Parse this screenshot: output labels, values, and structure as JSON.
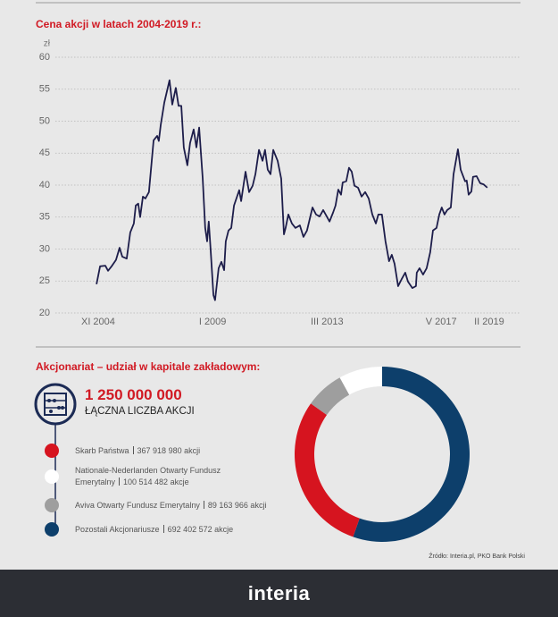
{
  "chart_data": [
    {
      "type": "line",
      "title": "Cena akcji w latach 2004-2019 r.:",
      "ylabel": "zł",
      "x": [
        2004.77,
        2004.9,
        2005.09,
        2005.19,
        2005.32,
        2005.48,
        2005.61,
        2005.71,
        2005.87,
        2006.0,
        2006.13,
        2006.2,
        2006.29,
        2006.36,
        2006.46,
        2006.55,
        2006.68,
        2006.85,
        2006.98,
        2007.04,
        2007.11,
        2007.24,
        2007.43,
        2007.53,
        2007.66,
        2007.76,
        2007.86,
        2007.95,
        2008.08,
        2008.18,
        2008.31,
        2008.41,
        2008.51,
        2008.64,
        2008.73,
        2008.8,
        2008.86,
        2008.93,
        2009.03,
        2009.09,
        2009.22,
        2009.32,
        2009.42,
        2009.48,
        2009.58,
        2009.68,
        2009.78,
        2009.97,
        2010.04,
        2010.2,
        2010.33,
        2010.46,
        2010.56,
        2010.69,
        2010.82,
        2010.91,
        2011.01,
        2011.11,
        2011.21,
        2011.37,
        2011.5,
        2011.6,
        2011.66,
        2011.76,
        2011.89,
        2012.02,
        2012.18,
        2012.31,
        2012.44,
        2012.54,
        2012.64,
        2012.77,
        2012.9,
        2013.03,
        2013.16,
        2013.26,
        2013.39,
        2013.48,
        2013.58,
        2013.68,
        2013.74,
        2013.87,
        2013.97,
        2014.07,
        2014.17,
        2014.3,
        2014.43,
        2014.56,
        2014.69,
        2014.82,
        2014.95,
        2015.04,
        2015.17,
        2015.3,
        2015.43,
        2015.53,
        2015.63,
        2015.76,
        2015.89,
        2016.02,
        2016.12,
        2016.28,
        2016.41,
        2016.44,
        2016.54,
        2016.67,
        2016.8,
        2016.93,
        2017.03,
        2017.16,
        2017.26,
        2017.35,
        2017.45,
        2017.55,
        2017.68,
        2017.78,
        2017.94,
        2018.04,
        2018.2,
        2018.26,
        2018.33,
        2018.43,
        2018.49,
        2018.62,
        2018.75,
        2018.88,
        2019.01
      ],
      "series": [
        {
          "color": "#1d1d4a",
          "values": [
            24.5,
            27.3,
            27.4,
            26.6,
            27.3,
            28.3,
            30.2,
            28.8,
            28.5,
            32.6,
            34.0,
            36.8,
            37.1,
            35.0,
            38.2,
            37.9,
            38.9,
            47.0,
            47.7,
            46.9,
            49.4,
            52.9,
            56.4,
            52.6,
            55.2,
            52.4,
            52.4,
            45.9,
            43.1,
            46.6,
            48.7,
            45.9,
            49.0,
            41.0,
            33.3,
            31.2,
            34.3,
            29.8,
            22.8,
            22.0,
            27.0,
            28.0,
            26.7,
            31.2,
            32.9,
            33.3,
            36.8,
            39.2,
            37.5,
            42.1,
            38.9,
            39.9,
            41.7,
            45.5,
            43.8,
            45.5,
            42.4,
            41.7,
            45.5,
            43.8,
            41.0,
            32.3,
            33.3,
            35.4,
            34.0,
            33.3,
            33.7,
            31.9,
            32.9,
            34.7,
            36.5,
            35.4,
            35.1,
            36.1,
            35.1,
            34.3,
            35.7,
            36.8,
            39.3,
            38.5,
            40.4,
            40.6,
            42.7,
            42.1,
            39.9,
            39.6,
            38.2,
            38.9,
            37.9,
            35.4,
            34.0,
            35.4,
            35.4,
            31.2,
            28.1,
            29.1,
            27.7,
            24.2,
            25.3,
            26.3,
            24.9,
            23.9,
            24.2,
            26.3,
            27.0,
            26.0,
            27.0,
            29.5,
            32.9,
            33.3,
            35.4,
            36.5,
            35.4,
            36.1,
            36.5,
            41.7,
            45.6,
            42.4,
            40.6,
            40.7,
            38.5,
            39.0,
            41.3,
            41.4,
            40.3,
            40.1,
            39.6
          ]
        }
      ],
      "xlim": [
        2003.27,
        2020.22
      ],
      "xticks": [
        {
          "value": 2004.83,
          "label": "XI 2004"
        },
        {
          "value": 2009.0,
          "label": "I 2009"
        },
        {
          "value": 2013.17,
          "label": "III 2013"
        },
        {
          "value": 2017.33,
          "label": "V 2017"
        },
        {
          "value": 2019.08,
          "label": "II 2019"
        }
      ],
      "ylim": [
        20,
        60
      ],
      "yticks": [
        20,
        25,
        30,
        35,
        40,
        45,
        50,
        55,
        60
      ],
      "grid": true
    },
    {
      "type": "donut",
      "title": "Akcjonariat – udział w kapitale zakładowym:",
      "total": {
        "value": 1250000000,
        "label": "1 250 000 000"
      },
      "total_caption": "ŁĄCZNA LICZBA AKCJI",
      "categories": [
        "Skarb Państwa",
        "Nationale-Nederlanden Otwarty Fundusz Emerytalny",
        "Aviva Otwarty Fundusz Emerytalny",
        "Pozostali Akcjonariusze"
      ],
      "values": [
        367918980,
        100514482,
        89163966,
        692402572
      ],
      "value_labels": [
        "367 918 980 akcji",
        "100 514 482 akcje",
        "89 163 966 akcji",
        "692 402 572 akcje"
      ],
      "colors": [
        "#d6141f",
        "#ffffff",
        "#9e9e9e",
        "#0d3f6b"
      ]
    }
  ],
  "source": "Źródło: Interia.pl, PKO Bank Polski",
  "brand": "interia"
}
